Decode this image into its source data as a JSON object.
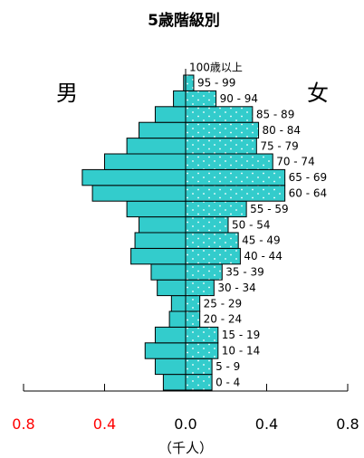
{
  "chart_data": {
    "type": "bar",
    "orientation": "horizontal-population-pyramid",
    "title": "5歳階級別",
    "left_label": "男",
    "right_label": "女",
    "unit_label": "（千人）",
    "categories": [
      "0 - 4",
      "5 - 9",
      "10 - 14",
      "15 - 19",
      "20 - 24",
      "25 - 29",
      "30 - 34",
      "35 - 39",
      "40 - 44",
      "45 - 49",
      "50 - 54",
      "55 - 59",
      "60 - 64",
      "65 - 69",
      "70 - 74",
      "75 - 79",
      "80 - 84",
      "85 - 89",
      "90 - 94",
      "95 - 99",
      "100歳以上"
    ],
    "series": [
      {
        "name": "男",
        "values": [
          0.11,
          0.15,
          0.2,
          0.15,
          0.08,
          0.07,
          0.14,
          0.17,
          0.27,
          0.25,
          0.23,
          0.29,
          0.46,
          0.51,
          0.4,
          0.29,
          0.23,
          0.15,
          0.06,
          0.01,
          0.0
        ]
      },
      {
        "name": "女",
        "values": [
          0.13,
          0.13,
          0.16,
          0.16,
          0.07,
          0.07,
          0.14,
          0.18,
          0.27,
          0.26,
          0.21,
          0.3,
          0.49,
          0.49,
          0.43,
          0.35,
          0.36,
          0.33,
          0.15,
          0.04,
          0.0
        ]
      }
    ],
    "xlim": [
      -0.8,
      0.8
    ],
    "x_ticks": [
      {
        "value": -0.8,
        "label": "0.8",
        "color": "#ff0000"
      },
      {
        "value": -0.4,
        "label": "0.4",
        "color": "#ff0000"
      },
      {
        "value": 0.0,
        "label": "0.0",
        "color": "#000000"
      },
      {
        "value": 0.4,
        "label": "0.4",
        "color": "#000000"
      },
      {
        "value": 0.8,
        "label": "0.8",
        "color": "#000000"
      }
    ],
    "colors": {
      "male_fill": "#33cccc",
      "female_fill": "#33cccc",
      "female_dots": "#ffffff",
      "outline": "#000000"
    },
    "grid": false
  }
}
